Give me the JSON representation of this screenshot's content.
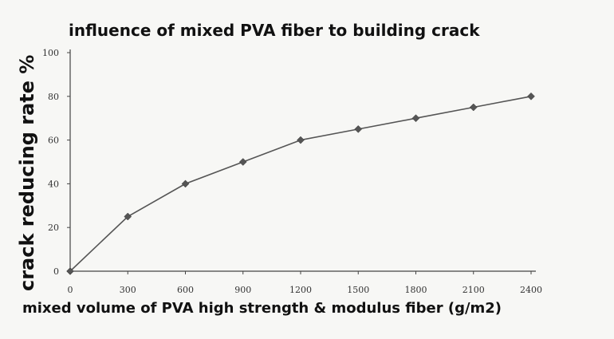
{
  "chart_data": {
    "type": "line",
    "title": "influence of mixed PVA fiber to building crack",
    "xlabel": "mixed volume of PVA high strength & modulus fiber (g/m2)",
    "ylabel": "crack reducing rate %",
    "xlim": [
      0,
      2400
    ],
    "ylim": [
      0,
      100
    ],
    "x_ticks": [
      "0",
      "300",
      "600",
      "900",
      "1200",
      "1500",
      "1800",
      "2100",
      "2400"
    ],
    "y_ticks": [
      "0",
      "20",
      "40",
      "60",
      "80",
      "100"
    ],
    "grid": false,
    "marker": "diamond",
    "color": "#555555",
    "series": [
      {
        "x": [
          0,
          300,
          600,
          900,
          1200,
          1500,
          1800,
          2100,
          2400
        ],
        "values": [
          0,
          25,
          40,
          50,
          60,
          65,
          70,
          75,
          80
        ]
      }
    ]
  }
}
